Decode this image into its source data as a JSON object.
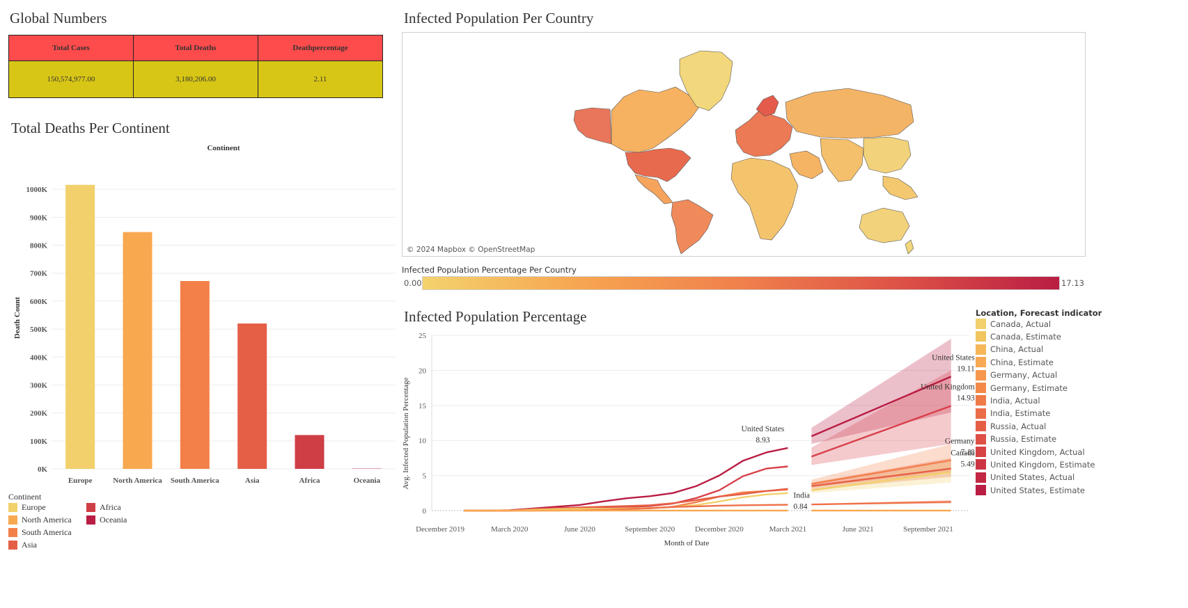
{
  "global": {
    "title": "Global Numbers",
    "headers": [
      "Total Cases",
      "Total Deaths",
      "Deathpercentage"
    ],
    "values": [
      "150,574,977.00",
      "3,180,206.00",
      "2.11"
    ],
    "colors": {
      "header": "#fe4b4b",
      "values": "#d8c616"
    }
  },
  "deaths_section": {
    "title": "Total Deaths Per Continent"
  },
  "map_section": {
    "title": "Infected Population Per Country",
    "attribution": "© 2024 Mapbox © OpenStreetMap",
    "scale_title": "Infected Population Percentage Per Country",
    "scale_min": "0.00",
    "scale_max": "17.13"
  },
  "pct_section": {
    "title": "Infected Population Percentage"
  },
  "chart_data": [
    {
      "type": "bar",
      "title": "Continent",
      "xlabel": "",
      "ylabel": "Death Count",
      "categories": [
        "Europe",
        "North America",
        "South America",
        "Asia",
        "Africa",
        "Oceania"
      ],
      "values": [
        1016000,
        847000,
        672000,
        520000,
        121000,
        1000
      ],
      "colors": [
        "#f2d06b",
        "#f8a84f",
        "#f38049",
        "#e55f47",
        "#cf3e45",
        "#b91d43"
      ],
      "ylim": [
        0,
        1080000
      ],
      "yticks": [
        0,
        100000,
        200000,
        300000,
        400000,
        500000,
        600000,
        700000,
        800000,
        900000,
        1000000
      ],
      "yticklabels": [
        "0K",
        "100K",
        "200K",
        "300K",
        "400K",
        "500K",
        "600K",
        "700K",
        "800K",
        "900K",
        "1000K"
      ],
      "grid": true,
      "legend": {
        "title": "Continent",
        "position": "bottom-left",
        "items": [
          "Europe",
          "North America",
          "South America",
          "Asia",
          "Africa",
          "Oceania"
        ]
      }
    },
    {
      "type": "line",
      "title": "",
      "xlabel": "Month of Date",
      "ylabel": "Avg. Infected Population Percentage",
      "ylim": [
        0,
        25
      ],
      "yticks": [
        0,
        5,
        10,
        15,
        20,
        25
      ],
      "grid": true,
      "xticks": [
        {
          "date": "2019-12-01",
          "label": "December 2019"
        },
        {
          "date": "2020-03-01",
          "label": "March 2020"
        },
        {
          "date": "2020-06-01",
          "label": "June 2020"
        },
        {
          "date": "2020-09-01",
          "label": "September 2020"
        },
        {
          "date": "2020-12-01",
          "label": "December 2020"
        },
        {
          "date": "2021-03-01",
          "label": "March 2021"
        },
        {
          "date": "2021-06-01",
          "label": "June 2021"
        },
        {
          "date": "2021-09-01",
          "label": "September 2021"
        }
      ],
      "x": [
        "2020-01-01",
        "2020-02-01",
        "2020-03-01",
        "2020-04-01",
        "2020-05-01",
        "2020-06-01",
        "2020-07-01",
        "2020-08-01",
        "2020-09-01",
        "2020-10-01",
        "2020-11-01",
        "2020-12-01",
        "2021-01-01",
        "2021-02-01",
        "2021-03-01"
      ],
      "series": [
        {
          "name": "United States, Actual",
          "color": "#b91d43",
          "values": [
            0,
            0,
            0.05,
            0.3,
            0.55,
            0.8,
            1.3,
            1.75,
            2.05,
            2.5,
            3.5,
            5.0,
            7.1,
            8.3,
            8.93
          ]
        },
        {
          "name": "United Kingdom, Actual",
          "color": "#d8404a",
          "values": [
            0,
            0,
            0.01,
            0.2,
            0.38,
            0.43,
            0.46,
            0.5,
            0.65,
            1.0,
            1.8,
            2.9,
            4.9,
            6.0,
            6.3
          ]
        },
        {
          "name": "Germany, Actual",
          "color": "#f38049",
          "values": [
            0,
            0,
            0.01,
            0.18,
            0.21,
            0.23,
            0.25,
            0.27,
            0.32,
            0.55,
            1.2,
            2.0,
            2.6,
            2.8,
            3.0
          ]
        },
        {
          "name": "Russia, Actual",
          "color": "#e55f47",
          "values": [
            0,
            0,
            0,
            0.06,
            0.27,
            0.45,
            0.55,
            0.65,
            0.76,
            1.05,
            1.5,
            2.0,
            2.35,
            2.8,
            3.1
          ]
        },
        {
          "name": "Canada, Actual",
          "color": "#f2d06b",
          "values": [
            0,
            0,
            0.01,
            0.1,
            0.22,
            0.25,
            0.27,
            0.31,
            0.37,
            0.5,
            0.8,
            1.3,
            1.9,
            2.3,
            2.5
          ]
        },
        {
          "name": "India, Actual",
          "color": "#ee7047",
          "values": [
            0,
            0,
            0,
            0,
            0.01,
            0.03,
            0.1,
            0.2,
            0.35,
            0.52,
            0.6,
            0.7,
            0.76,
            0.8,
            0.84
          ]
        },
        {
          "name": "China, Actual",
          "color": "#f8a84f",
          "values": [
            0,
            0.01,
            0.01,
            0.01,
            0.01,
            0.01,
            0.01,
            0.01,
            0.01,
            0.01,
            0.01,
            0.01,
            0.01,
            0.01,
            0.01
          ]
        }
      ],
      "forecast": {
        "start": "2021-04-01",
        "end": "2021-10-01",
        "series": [
          {
            "name": "United States, Estimate",
            "color": "#b91d43",
            "values": [
              10.6,
              19.11
            ],
            "band_low": [
              9.5,
              14.0
            ],
            "band_high": [
              11.8,
              24.5
            ]
          },
          {
            "name": "United Kingdom, Estimate",
            "color": "#d8404a",
            "values": [
              7.7,
              14.93
            ],
            "band_low": [
              6.5,
              9.5
            ],
            "band_high": [
              9.0,
              20.0
            ]
          },
          {
            "name": "Germany, Estimate",
            "color": "#f38049",
            "values": [
              3.8,
              7.18
            ],
            "band_low": [
              3.3,
              5.5
            ],
            "band_high": [
              4.4,
              9.5
            ]
          },
          {
            "name": "Russia, Estimate",
            "color": "#e55f47",
            "values": [
              3.5,
              6.0
            ],
            "band_low": [
              3.0,
              4.8
            ],
            "band_high": [
              4.0,
              7.5
            ]
          },
          {
            "name": "Canada, Estimate",
            "color": "#f2d06b",
            "values": [
              2.9,
              5.49
            ],
            "band_low": [
              2.5,
              4.0
            ],
            "band_high": [
              3.4,
              7.0
            ]
          },
          {
            "name": "India, Estimate",
            "color": "#ee7047",
            "values": [
              0.87,
              1.25
            ],
            "band_low": [
              0.8,
              1.0
            ],
            "band_high": [
              0.95,
              1.5
            ]
          },
          {
            "name": "China, Estimate",
            "color": "#f8a84f",
            "values": [
              0.01,
              0.01
            ],
            "band_low": [
              0,
              0
            ],
            "band_high": [
              0.02,
              0.02
            ]
          }
        ]
      },
      "annotations": [
        {
          "label": "United States",
          "value": "8.93",
          "date": "2021-03-01",
          "y": 8.93
        },
        {
          "label": "United States",
          "value": "19.11",
          "date": "2021-10-01",
          "y": 19.11
        },
        {
          "label": "United Kingdom",
          "value": "14.93",
          "date": "2021-10-01",
          "y": 14.93
        },
        {
          "label": "Germany",
          "value": "7.18",
          "date": "2021-10-01",
          "y": 7.18
        },
        {
          "label": "Canada",
          "value": "5.49",
          "date": "2021-10-01",
          "y": 5.49
        },
        {
          "label": "India",
          "value": "0.84",
          "date": "2021-03-01",
          "y": 0.84
        }
      ],
      "legend": {
        "title": "Location, Forecast indicator",
        "position": "right",
        "items": [
          {
            "label": "Canada, Actual",
            "color": "#f2d06b"
          },
          {
            "label": "Canada, Estimate",
            "color": "#f2c65f"
          },
          {
            "label": "China, Actual",
            "color": "#f6b758"
          },
          {
            "label": "China, Estimate",
            "color": "#f7a852"
          },
          {
            "label": "Germany, Actual",
            "color": "#f6984d"
          },
          {
            "label": "Germany, Estimate",
            "color": "#f38a4a"
          },
          {
            "label": "India, Actual",
            "color": "#ee7b48"
          },
          {
            "label": "India, Estimate",
            "color": "#ea6d47"
          },
          {
            "label": "Russia, Actual",
            "color": "#e55f47"
          },
          {
            "label": "Russia, Estimate",
            "color": "#de5046"
          },
          {
            "label": "United Kingdom, Actual",
            "color": "#d64245"
          },
          {
            "label": "United Kingdom, Estimate",
            "color": "#cc3444"
          },
          {
            "label": "United States, Actual",
            "color": "#c22843"
          },
          {
            "label": "United States, Estimate",
            "color": "#b91d43"
          }
        ]
      }
    }
  ]
}
